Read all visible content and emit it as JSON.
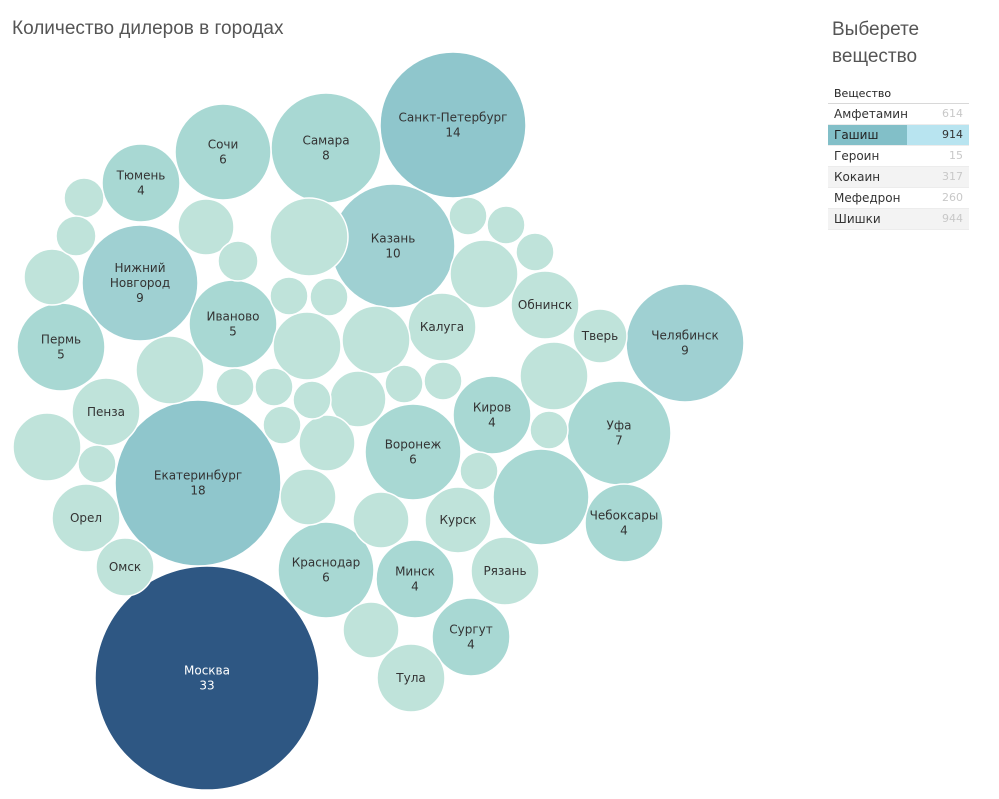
{
  "title": "Количество дилеров в городах",
  "filter": {
    "title": "Выберете вещество",
    "header": "Вещество",
    "options": [
      {
        "name": "Амфетамин",
        "count": "614",
        "selected": false
      },
      {
        "name": "Гашиш",
        "count": "914",
        "selected": true
      },
      {
        "name": "Героин",
        "count": "15",
        "selected": false
      },
      {
        "name": "Кокаин",
        "count": "317",
        "selected": false
      },
      {
        "name": "Мефедрон",
        "count": "260",
        "selected": false
      },
      {
        "name": "Шишки",
        "count": "944",
        "selected": false
      }
    ]
  },
  "colors": {
    "light": "#bfe3da",
    "mid": "#a8d8d3",
    "deep": "#8fc6cc",
    "dark": "#2e5783"
  },
  "chart_data": {
    "type": "packed-bubble",
    "title": "Количество дилеров в городах",
    "bubbles": [
      {
        "label": "Москва",
        "value": 33
      },
      {
        "label": "Екатеринбург",
        "value": 18
      },
      {
        "label": "Санкт-Петербург",
        "value": 14
      },
      {
        "label": "Казань",
        "value": 10
      },
      {
        "label": "Нижний Новгород",
        "value": 9
      },
      {
        "label": "Челябинск",
        "value": 9
      },
      {
        "label": "Самара",
        "value": 8
      },
      {
        "label": "Уфа",
        "value": 7
      },
      {
        "label": "Воронеж",
        "value": 6
      },
      {
        "label": "Краснодар",
        "value": 6
      },
      {
        "label": "Сочи",
        "value": 6
      },
      {
        "label": "Пермь",
        "value": 5
      },
      {
        "label": "Иваново",
        "value": 5
      },
      {
        "label": "Тюмень",
        "value": 4
      },
      {
        "label": "Киров",
        "value": 4
      },
      {
        "label": "Минск",
        "value": 4
      },
      {
        "label": "Сургут",
        "value": 4
      },
      {
        "label": "Чебоксары",
        "value": 4
      },
      {
        "label": "Калуга",
        "value": 3
      },
      {
        "label": "Обнинск",
        "value": 3
      },
      {
        "label": "Курск",
        "value": 3
      },
      {
        "label": "Тверь",
        "value": 2
      },
      {
        "label": "Пенза",
        "value": 2
      },
      {
        "label": "Орел",
        "value": 2
      },
      {
        "label": "Омск",
        "value": 2
      },
      {
        "label": "Рязань",
        "value": 2
      },
      {
        "label": "Тула",
        "value": 2
      },
      {
        "label": "",
        "value": 4
      },
      {
        "label": "",
        "value": 3
      },
      {
        "label": "",
        "value": 3
      },
      {
        "label": "",
        "value": 2
      },
      {
        "label": "",
        "value": 2
      },
      {
        "label": "",
        "value": 2
      },
      {
        "label": "",
        "value": 2
      },
      {
        "label": "",
        "value": 2
      },
      {
        "label": "",
        "value": 2
      },
      {
        "label": "",
        "value": 2
      },
      {
        "label": "",
        "value": 2
      },
      {
        "label": "",
        "value": 2
      },
      {
        "label": "",
        "value": 2
      },
      {
        "label": "",
        "value": 2
      },
      {
        "label": "",
        "value": 1
      },
      {
        "label": "",
        "value": 1
      },
      {
        "label": "",
        "value": 1
      },
      {
        "label": "",
        "value": 1
      },
      {
        "label": "",
        "value": 1
      },
      {
        "label": "",
        "value": 1
      },
      {
        "label": "",
        "value": 1
      },
      {
        "label": "",
        "value": 1
      },
      {
        "label": "",
        "value": 1
      },
      {
        "label": "",
        "value": 1
      },
      {
        "label": "",
        "value": 1
      },
      {
        "label": "",
        "value": 1
      },
      {
        "label": "",
        "value": 1
      },
      {
        "label": "",
        "value": 1
      },
      {
        "label": "",
        "value": 1
      },
      {
        "label": "",
        "value": 1
      },
      {
        "label": "",
        "value": 1
      },
      {
        "label": "",
        "value": 1
      }
    ]
  }
}
